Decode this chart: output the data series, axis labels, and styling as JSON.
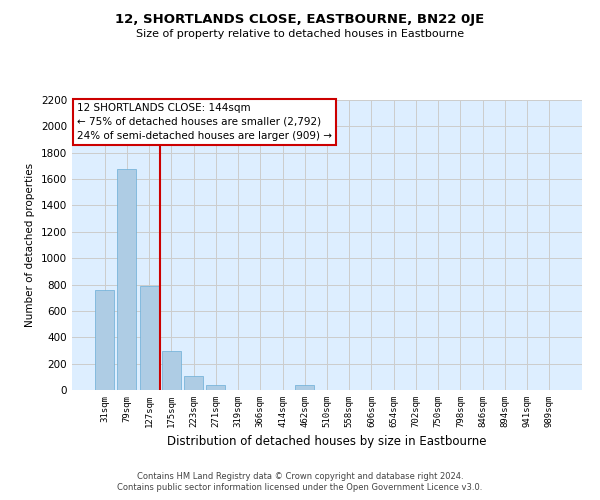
{
  "title": "12, SHORTLANDS CLOSE, EASTBOURNE, BN22 0JE",
  "subtitle": "Size of property relative to detached houses in Eastbourne",
  "xlabel": "Distribution of detached houses by size in Eastbourne",
  "ylabel": "Number of detached properties",
  "categories": [
    "31sqm",
    "79sqm",
    "127sqm",
    "175sqm",
    "223sqm",
    "271sqm",
    "319sqm",
    "366sqm",
    "414sqm",
    "462sqm",
    "510sqm",
    "558sqm",
    "606sqm",
    "654sqm",
    "702sqm",
    "750sqm",
    "798sqm",
    "846sqm",
    "894sqm",
    "941sqm",
    "989sqm"
  ],
  "values": [
    760,
    1680,
    790,
    295,
    110,
    38,
    0,
    0,
    0,
    35,
    0,
    0,
    0,
    0,
    0,
    0,
    0,
    0,
    0,
    0,
    0
  ],
  "bar_color": "#aecce4",
  "bar_edge_color": "#6aaed6",
  "redline_x": 2.5,
  "annotation_text_line1": "12 SHORTLANDS CLOSE: 144sqm",
  "annotation_text_line2": "← 75% of detached houses are smaller (2,792)",
  "annotation_text_line3": "24% of semi-detached houses are larger (909) →",
  "annotation_box_color": "#ffffff",
  "annotation_box_edge": "#cc0000",
  "redline_color": "#cc0000",
  "ylim": [
    0,
    2200
  ],
  "yticks": [
    0,
    200,
    400,
    600,
    800,
    1000,
    1200,
    1400,
    1600,
    1800,
    2000,
    2200
  ],
  "grid_color": "#cccccc",
  "bg_color": "#ddeeff",
  "footer_line1": "Contains HM Land Registry data © Crown copyright and database right 2024.",
  "footer_line2": "Contains public sector information licensed under the Open Government Licence v3.0."
}
